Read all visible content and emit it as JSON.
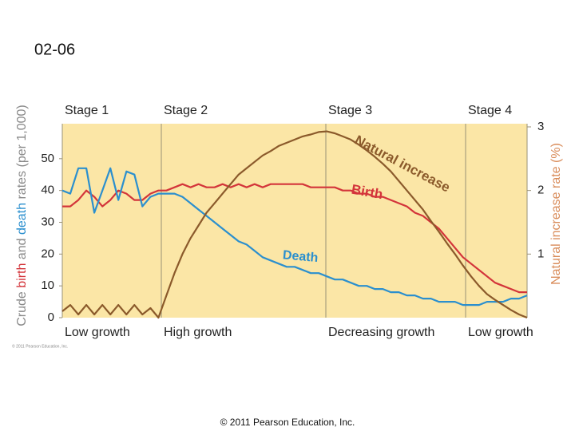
{
  "slide_title": "02-06",
  "footer": "© 2011 Pearson Education, Inc.",
  "chart_data": {
    "type": "line",
    "credit": "© 2011 Pearson Education, Inc.",
    "ylabel_parts": [
      "Crude ",
      "birth",
      " and ",
      "death",
      " rates (per 1,000)"
    ],
    "y2label": "Natural increase rate (%)",
    "stages": [
      {
        "label": "Stage 1",
        "bottom": "Low growth"
      },
      {
        "label": "Stage 2",
        "bottom": "High growth"
      },
      {
        "label": "Stage 3",
        "bottom": "Decreasing growth"
      },
      {
        "label": "Stage 4",
        "bottom": "Low growth"
      }
    ],
    "ylim": [
      0,
      61
    ],
    "yticks": [
      0,
      10,
      20,
      30,
      40,
      50
    ],
    "y2lim": [
      0,
      3.05
    ],
    "y2ticks": [
      1,
      2,
      3
    ],
    "series": [
      {
        "name": "Birth",
        "color": "#d3343a",
        "values": [
          35,
          35,
          37,
          40,
          38,
          35,
          37,
          40,
          39,
          37,
          37,
          39,
          40,
          40,
          41,
          42,
          41,
          42,
          41,
          41,
          42,
          41,
          42,
          41,
          42,
          41,
          42,
          42,
          42,
          42,
          42,
          41,
          41,
          41,
          41,
          40,
          40,
          39,
          39,
          38,
          38,
          37,
          36,
          35,
          33,
          32,
          30,
          28,
          25,
          22,
          19,
          17,
          15,
          13,
          11,
          10,
          9,
          8,
          8
        ]
      },
      {
        "name": "Death",
        "color": "#2b8fce",
        "values": [
          40,
          39,
          47,
          47,
          33,
          40,
          47,
          37,
          46,
          45,
          35,
          38,
          39,
          39,
          39,
          38,
          36,
          34,
          32,
          30,
          28,
          26,
          24,
          23,
          21,
          19,
          18,
          17,
          16,
          16,
          15,
          14,
          14,
          13,
          12,
          12,
          11,
          10,
          10,
          9,
          9,
          8,
          8,
          7,
          7,
          6,
          6,
          5,
          5,
          5,
          4,
          4,
          4,
          5,
          5,
          5,
          6,
          6,
          7
        ]
      },
      {
        "name": "Natural increase",
        "color": "#8b5a2b",
        "axis": "y2",
        "values": [
          0.1,
          0.2,
          0.05,
          0.2,
          0.05,
          0.2,
          0.05,
          0.2,
          0.05,
          0.2,
          0.05,
          0.15,
          0,
          0.35,
          0.7,
          1.0,
          1.25,
          1.45,
          1.65,
          1.8,
          1.95,
          2.1,
          2.25,
          2.35,
          2.45,
          2.55,
          2.62,
          2.7,
          2.75,
          2.8,
          2.85,
          2.88,
          2.92,
          2.93,
          2.9,
          2.85,
          2.8,
          2.72,
          2.63,
          2.53,
          2.42,
          2.3,
          2.15,
          2.0,
          1.85,
          1.7,
          1.52,
          1.35,
          1.17,
          1.0,
          0.82,
          0.65,
          0.5,
          0.37,
          0.28,
          0.2,
          0.12,
          0.05,
          0
        ]
      }
    ]
  }
}
